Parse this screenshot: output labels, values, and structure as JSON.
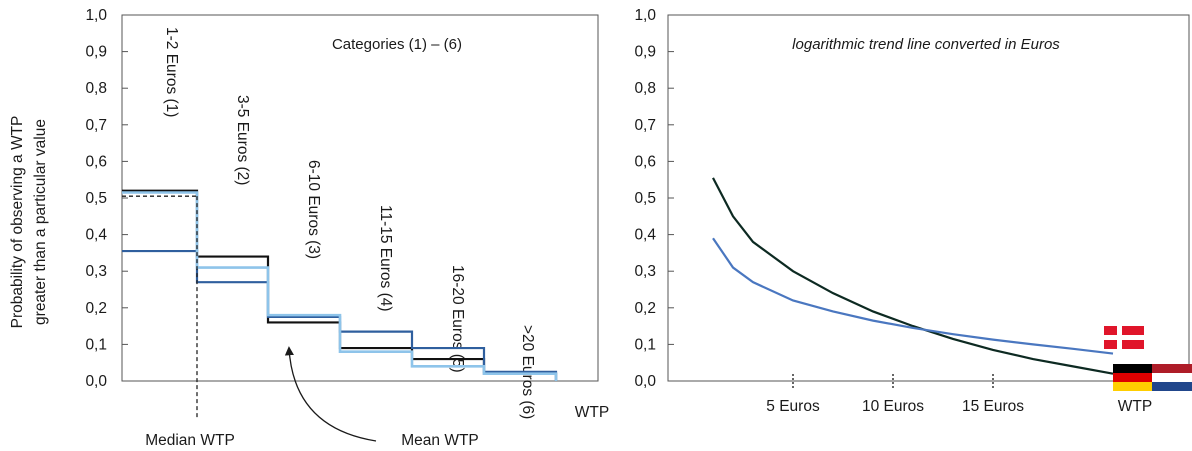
{
  "ylabel": [
    "Probability of observing a WTP",
    "greater than a particular value"
  ],
  "yticks": [
    "1,0",
    "0,9",
    "0,8",
    "0,7",
    "0,6",
    "0,5",
    "0,4",
    "0,3",
    "0,2",
    "0,1",
    "0,0"
  ],
  "colors": {
    "black": "#111111",
    "dark_blue": "#2f5f9e",
    "light_blue": "#8ec4ea",
    "green_black": "#0d2a22",
    "mid_blue": "#4a77c0"
  },
  "chart_data": [
    {
      "type": "line",
      "step": true,
      "title": "Categories (1) – (6)",
      "xlabel": "WTP",
      "ylim": [
        0,
        1
      ],
      "categories": [
        "1-2 Euros (1)",
        "3-5 Euros (2)",
        "6-10 Euros (3)",
        "11-15 Euros (4)",
        "16-20 Euros (5)",
        ">20 Euros (6)"
      ],
      "series": [
        {
          "color": "#111111",
          "values": [
            0.52,
            0.34,
            0.16,
            0.09,
            0.06,
            0.02
          ]
        },
        {
          "color": "#2f5f9e",
          "values": [
            0.355,
            0.27,
            0.175,
            0.135,
            0.09,
            0.025
          ]
        },
        {
          "color": "#8ec4ea",
          "values": [
            0.515,
            0.31,
            0.18,
            0.08,
            0.04,
            0.02
          ]
        }
      ],
      "median_line": {
        "value": 0.505,
        "label": "Median WTP"
      },
      "annotations": [
        "Mean WTP"
      ]
    },
    {
      "type": "line",
      "title": "logarithmic trend line converted in Euros",
      "xlabel": "WTP",
      "ylim": [
        0,
        1
      ],
      "xticks": [
        "5 Euros",
        "10 Euros",
        "15 Euros"
      ],
      "xlim": [
        0,
        21
      ],
      "series": [
        {
          "color": "#0d2a22",
          "x": [
            1,
            2,
            3,
            5,
            7,
            9,
            11,
            13,
            15,
            17,
            19,
            21
          ],
          "y": [
            0.555,
            0.45,
            0.38,
            0.3,
            0.24,
            0.19,
            0.15,
            0.115,
            0.085,
            0.06,
            0.04,
            0.02
          ]
        },
        {
          "color": "#4a77c0",
          "x": [
            1,
            2,
            3,
            5,
            7,
            9,
            11,
            13,
            15,
            17,
            19,
            21
          ],
          "y": [
            0.39,
            0.31,
            0.27,
            0.22,
            0.19,
            0.165,
            0.145,
            0.128,
            0.113,
            0.1,
            0.088,
            0.075
          ]
        }
      ],
      "flags": [
        "denmark-flag",
        "germany-flag",
        "netherlands-flag"
      ]
    }
  ]
}
